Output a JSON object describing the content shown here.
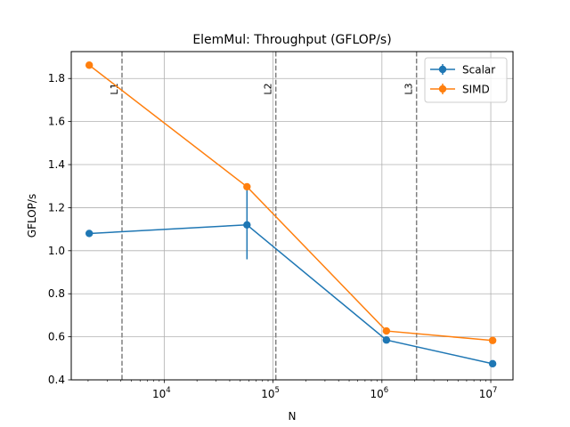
{
  "chart_data": {
    "type": "line",
    "title": "ElemMul: Throughput (GFLOP/s)",
    "xlabel": "N",
    "ylabel": "GFLOP/s",
    "xscale": "log",
    "xlim": [
      1400,
      16000000
    ],
    "ylim": [
      0.4,
      1.925
    ],
    "grid": true,
    "legend_position": "top-right",
    "x_ticks": [
      {
        "value": 10000,
        "base": "10",
        "exp": "4"
      },
      {
        "value": 100000,
        "base": "10",
        "exp": "5"
      },
      {
        "value": 1000000,
        "base": "10",
        "exp": "6"
      },
      {
        "value": 10000000,
        "base": "10",
        "exp": "7"
      }
    ],
    "y_ticks": [
      {
        "value": 0.4,
        "label": "0.4"
      },
      {
        "value": 0.6,
        "label": "0.6"
      },
      {
        "value": 0.8,
        "label": "0.8"
      },
      {
        "value": 1.0,
        "label": "1.0"
      },
      {
        "value": 1.2,
        "label": "1.2"
      },
      {
        "value": 1.4,
        "label": "1.4"
      },
      {
        "value": 1.6,
        "label": "1.6"
      },
      {
        "value": 1.8,
        "label": "1.8"
      }
    ],
    "series": [
      {
        "name": "Scalar",
        "color": "#1f77b4",
        "x": [
          2048,
          57600,
          1100000,
          10400000
        ],
        "y": [
          1.08,
          1.12,
          0.585,
          0.475
        ],
        "err_low": [
          1.08,
          0.96,
          0.585,
          0.475
        ],
        "err_high": [
          1.08,
          1.285,
          0.585,
          0.475
        ]
      },
      {
        "name": "SIMD",
        "color": "#ff7f0e",
        "x": [
          2048,
          57600,
          1100000,
          10400000
        ],
        "y": [
          1.862,
          1.297,
          0.627,
          0.583
        ],
        "err_low": [
          1.862,
          1.297,
          0.627,
          0.583
        ],
        "err_high": [
          1.862,
          1.297,
          0.627,
          0.583
        ]
      }
    ],
    "cache_lines": [
      {
        "label": "L1",
        "x": 4096
      },
      {
        "label": "L2",
        "x": 106000
      },
      {
        "label": "L3",
        "x": 2080000
      }
    ]
  }
}
